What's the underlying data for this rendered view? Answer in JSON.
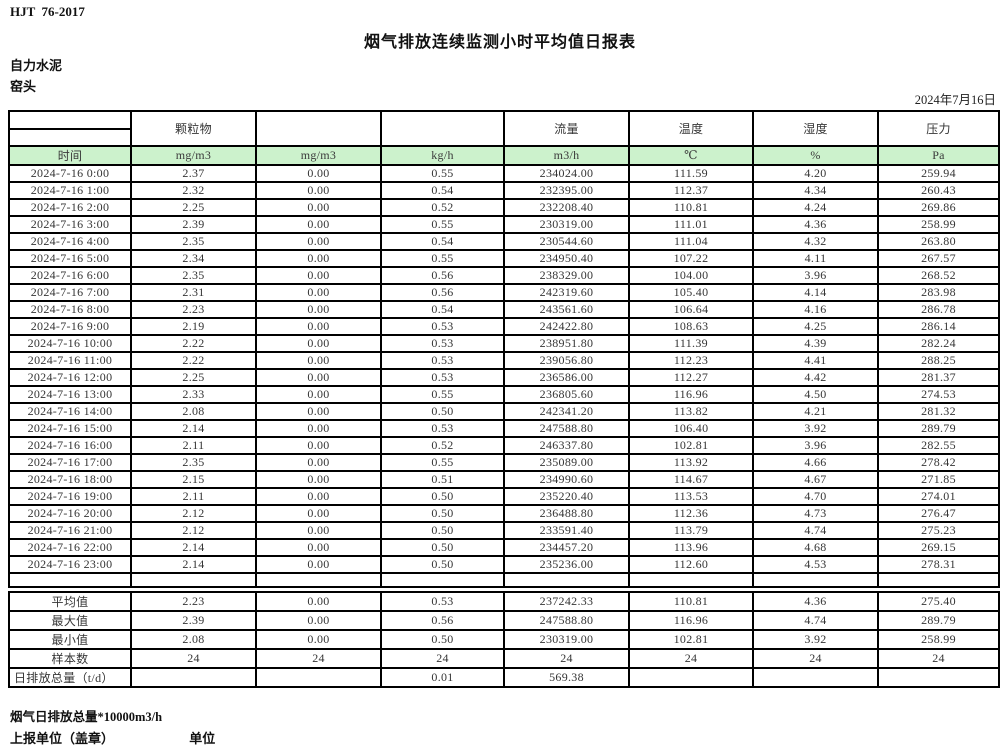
{
  "page": {
    "standard": "HJT  76-2017",
    "title": "烟气排放连续监测小时平均值日报表",
    "company": "自力水泥",
    "station": "窑头",
    "date": "2024年7月16日"
  },
  "colors": {
    "header_green": "#ccf2cc",
    "border": "#000000"
  },
  "table": {
    "group_headers": {
      "particulate": "颗粒物",
      "pollutant2": "",
      "pollutant3": "",
      "flow": "流量",
      "temperature": "温度",
      "humidity": "湿度",
      "pressure": "压力"
    },
    "unit_headers": [
      "时间",
      "mg/m3",
      "mg/m3",
      "kg/h",
      "m3/h",
      "℃",
      "%",
      "Pa"
    ],
    "rows": [
      [
        "2024-7-16 0:00",
        "2.37",
        "0.00",
        "0.55",
        "234024.00",
        "111.59",
        "4.20",
        "259.94"
      ],
      [
        "2024-7-16 1:00",
        "2.32",
        "0.00",
        "0.54",
        "232395.00",
        "112.37",
        "4.34",
        "260.43"
      ],
      [
        "2024-7-16 2:00",
        "2.25",
        "0.00",
        "0.52",
        "232208.40",
        "110.81",
        "4.24",
        "269.86"
      ],
      [
        "2024-7-16 3:00",
        "2.39",
        "0.00",
        "0.55",
        "230319.00",
        "111.01",
        "4.36",
        "258.99"
      ],
      [
        "2024-7-16 4:00",
        "2.35",
        "0.00",
        "0.54",
        "230544.60",
        "111.04",
        "4.32",
        "263.80"
      ],
      [
        "2024-7-16 5:00",
        "2.34",
        "0.00",
        "0.55",
        "234950.40",
        "107.22",
        "4.11",
        "267.57"
      ],
      [
        "2024-7-16 6:00",
        "2.35",
        "0.00",
        "0.56",
        "238329.00",
        "104.00",
        "3.96",
        "268.52"
      ],
      [
        "2024-7-16 7:00",
        "2.31",
        "0.00",
        "0.56",
        "242319.60",
        "105.40",
        "4.14",
        "283.98"
      ],
      [
        "2024-7-16 8:00",
        "2.23",
        "0.00",
        "0.54",
        "243561.60",
        "106.64",
        "4.16",
        "286.78"
      ],
      [
        "2024-7-16 9:00",
        "2.19",
        "0.00",
        "0.53",
        "242422.80",
        "108.63",
        "4.25",
        "286.14"
      ],
      [
        "2024-7-16 10:00",
        "2.22",
        "0.00",
        "0.53",
        "238951.80",
        "111.39",
        "4.39",
        "282.24"
      ],
      [
        "2024-7-16 11:00",
        "2.22",
        "0.00",
        "0.53",
        "239056.80",
        "112.23",
        "4.41",
        "288.25"
      ],
      [
        "2024-7-16 12:00",
        "2.25",
        "0.00",
        "0.53",
        "236586.00",
        "112.27",
        "4.42",
        "281.37"
      ],
      [
        "2024-7-16 13:00",
        "2.33",
        "0.00",
        "0.55",
        "236805.60",
        "116.96",
        "4.50",
        "274.53"
      ],
      [
        "2024-7-16 14:00",
        "2.08",
        "0.00",
        "0.50",
        "242341.20",
        "113.82",
        "4.21",
        "281.32"
      ],
      [
        "2024-7-16 15:00",
        "2.14",
        "0.00",
        "0.53",
        "247588.80",
        "106.40",
        "3.92",
        "289.79"
      ],
      [
        "2024-7-16 16:00",
        "2.11",
        "0.00",
        "0.52",
        "246337.80",
        "102.81",
        "3.96",
        "282.55"
      ],
      [
        "2024-7-16 17:00",
        "2.35",
        "0.00",
        "0.55",
        "235089.00",
        "113.92",
        "4.66",
        "278.42"
      ],
      [
        "2024-7-16 18:00",
        "2.15",
        "0.00",
        "0.51",
        "234990.60",
        "114.67",
        "4.67",
        "271.85"
      ],
      [
        "2024-7-16 19:00",
        "2.11",
        "0.00",
        "0.50",
        "235220.40",
        "113.53",
        "4.70",
        "274.01"
      ],
      [
        "2024-7-16 20:00",
        "2.12",
        "0.00",
        "0.50",
        "236488.80",
        "112.36",
        "4.73",
        "276.47"
      ],
      [
        "2024-7-16 21:00",
        "2.12",
        "0.00",
        "0.50",
        "233591.40",
        "113.79",
        "4.74",
        "275.23"
      ],
      [
        "2024-7-16 22:00",
        "2.14",
        "0.00",
        "0.50",
        "234457.20",
        "113.96",
        "4.68",
        "269.15"
      ],
      [
        "2024-7-16 23:00",
        "2.14",
        "0.00",
        "0.50",
        "235236.00",
        "112.60",
        "4.53",
        "278.31"
      ]
    ],
    "summary_rows": [
      [
        "平均值",
        "2.23",
        "0.00",
        "0.53",
        "237242.33",
        "110.81",
        "4.36",
        "275.40"
      ],
      [
        "最大值",
        "2.39",
        "0.00",
        "0.56",
        "247588.80",
        "116.96",
        "4.74",
        "289.79"
      ],
      [
        "最小值",
        "2.08",
        "0.00",
        "0.50",
        "230319.00",
        "102.81",
        "3.92",
        "258.99"
      ],
      [
        "样本数",
        "24",
        "24",
        "24",
        "24",
        "24",
        "24",
        "24"
      ],
      [
        "日排放总量（t/d）",
        "",
        "",
        "0.01",
        "569.38",
        "",
        "",
        ""
      ]
    ]
  },
  "footer": {
    "note": "烟气日排放总量*10000m3/h",
    "report_unit_label": "上报单位（盖章）",
    "unit_label": "单位"
  }
}
